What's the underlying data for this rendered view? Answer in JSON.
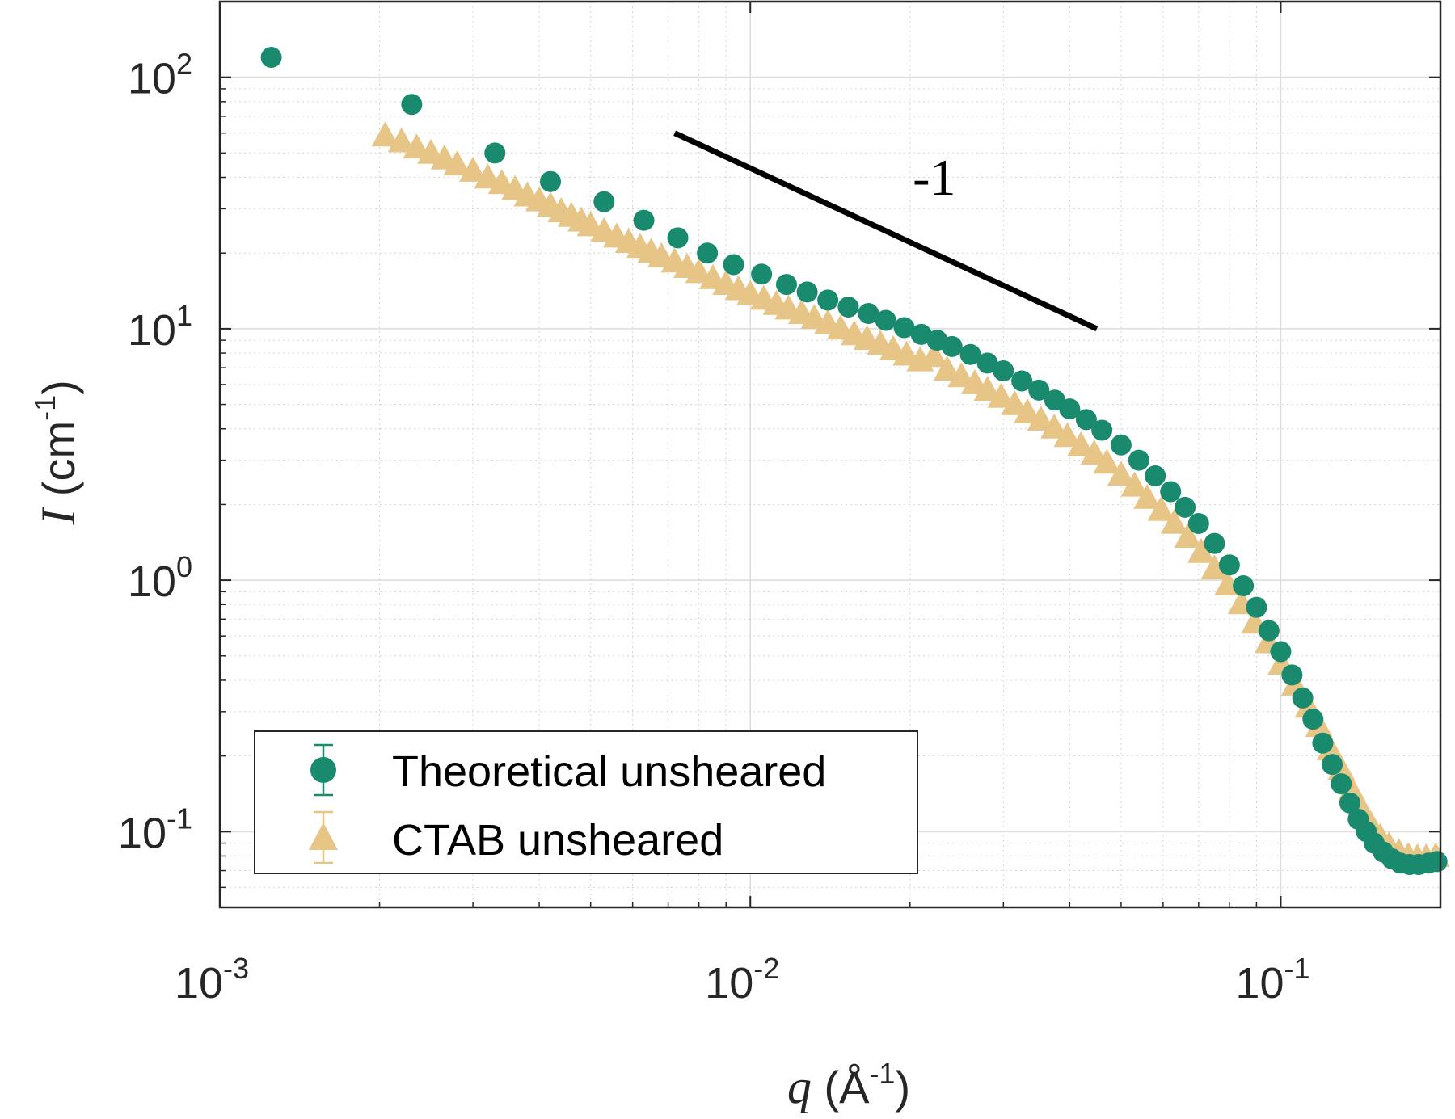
{
  "chart_data": {
    "type": "scatter",
    "xscale": "log",
    "yscale": "log",
    "xlim": [
      0.001,
      0.2
    ],
    "ylim": [
      0.05,
      200
    ],
    "grid": true,
    "minor_grid": true,
    "legend_position": "bottom-left",
    "xlabel": {
      "var": "q",
      "unit_open": " (Å",
      "unit_exp": "-1",
      "unit_close": ")"
    },
    "ylabel": {
      "var": "I",
      "unit_open": " (cm",
      "unit_exp": "-1",
      "unit_close": ")"
    },
    "xticks": [
      {
        "value": 0.001,
        "base": "10",
        "exp": "-3"
      },
      {
        "value": 0.01,
        "base": "10",
        "exp": "-2"
      },
      {
        "value": 0.1,
        "base": "10",
        "exp": "-1"
      }
    ],
    "yticks": [
      {
        "value": 0.1,
        "base": "10",
        "exp": "-1"
      },
      {
        "value": 1,
        "base": "10",
        "exp": "0"
      },
      {
        "value": 10,
        "base": "10",
        "exp": "1"
      },
      {
        "value": 100,
        "base": "10",
        "exp": "2"
      }
    ],
    "annotations": [
      {
        "type": "slope_line",
        "x": [
          0.0072,
          0.045
        ],
        "y": [
          60,
          10
        ],
        "label": "-1"
      }
    ],
    "series": [
      {
        "name": "Theoretical unsheared",
        "marker": "circle",
        "color": "#1a8a6e",
        "points": [
          [
            0.00125,
            120
          ],
          [
            0.0023,
            78
          ],
          [
            0.0033,
            50
          ],
          [
            0.0042,
            38.5
          ],
          [
            0.0053,
            32
          ],
          [
            0.0063,
            27
          ],
          [
            0.0073,
            23
          ],
          [
            0.0083,
            20
          ],
          [
            0.0093,
            18
          ],
          [
            0.0105,
            16.5
          ],
          [
            0.0117,
            15
          ],
          [
            0.0128,
            14
          ],
          [
            0.014,
            13
          ],
          [
            0.0153,
            12.2
          ],
          [
            0.0167,
            11.5
          ],
          [
            0.018,
            10.8
          ],
          [
            0.0195,
            10.1
          ],
          [
            0.021,
            9.5
          ],
          [
            0.0225,
            9
          ],
          [
            0.024,
            8.5
          ],
          [
            0.026,
            7.9
          ],
          [
            0.028,
            7.3
          ],
          [
            0.03,
            6.8
          ],
          [
            0.0325,
            6.2
          ],
          [
            0.035,
            5.7
          ],
          [
            0.0375,
            5.2
          ],
          [
            0.04,
            4.8
          ],
          [
            0.043,
            4.35
          ],
          [
            0.046,
            3.95
          ],
          [
            0.05,
            3.45
          ],
          [
            0.054,
            3.0
          ],
          [
            0.058,
            2.6
          ],
          [
            0.062,
            2.25
          ],
          [
            0.066,
            1.95
          ],
          [
            0.07,
            1.68
          ],
          [
            0.075,
            1.4
          ],
          [
            0.08,
            1.15
          ],
          [
            0.085,
            0.95
          ],
          [
            0.09,
            0.78
          ],
          [
            0.095,
            0.63
          ],
          [
            0.1,
            0.52
          ],
          [
            0.105,
            0.42
          ],
          [
            0.11,
            0.34
          ],
          [
            0.115,
            0.28
          ],
          [
            0.12,
            0.225
          ],
          [
            0.125,
            0.185
          ],
          [
            0.13,
            0.155
          ],
          [
            0.135,
            0.13
          ],
          [
            0.14,
            0.112
          ],
          [
            0.145,
            0.1
          ],
          [
            0.15,
            0.09
          ],
          [
            0.156,
            0.083
          ],
          [
            0.162,
            0.078
          ],
          [
            0.168,
            0.075
          ],
          [
            0.175,
            0.074
          ],
          [
            0.182,
            0.074
          ],
          [
            0.19,
            0.075
          ],
          [
            0.197,
            0.076
          ]
        ]
      },
      {
        "name": "CTAB unsheared",
        "marker": "triangle",
        "color": "#e6c587",
        "points": [
          [
            0.00205,
            58
          ],
          [
            0.0022,
            55
          ],
          [
            0.00235,
            52
          ],
          [
            0.0025,
            49.5
          ],
          [
            0.00265,
            47
          ],
          [
            0.0028,
            44.5
          ],
          [
            0.003,
            42
          ],
          [
            0.0032,
            39.5
          ],
          [
            0.0034,
            37.5
          ],
          [
            0.0036,
            35.5
          ],
          [
            0.0038,
            33.5
          ],
          [
            0.004,
            32
          ],
          [
            0.0042,
            30.5
          ],
          [
            0.0044,
            29
          ],
          [
            0.0046,
            27.8
          ],
          [
            0.0048,
            26.6
          ],
          [
            0.005,
            25.5
          ],
          [
            0.0053,
            24.2
          ],
          [
            0.0056,
            23
          ],
          [
            0.0059,
            21.9
          ],
          [
            0.0062,
            20.9
          ],
          [
            0.0065,
            20
          ],
          [
            0.0068,
            19.2
          ],
          [
            0.0072,
            18.3
          ],
          [
            0.0076,
            17.4
          ],
          [
            0.008,
            16.6
          ],
          [
            0.0085,
            15.7
          ],
          [
            0.009,
            14.9
          ],
          [
            0.0095,
            14.2
          ],
          [
            0.01,
            13.6
          ],
          [
            0.0106,
            13
          ],
          [
            0.0112,
            12.4
          ],
          [
            0.0118,
            11.9
          ],
          [
            0.0125,
            11.4
          ],
          [
            0.0132,
            10.9
          ],
          [
            0.014,
            10.4
          ],
          [
            0.0148,
            9.9
          ],
          [
            0.0157,
            9.4
          ],
          [
            0.0166,
            9.0
          ],
          [
            0.0176,
            8.6
          ],
          [
            0.0186,
            8.2
          ],
          [
            0.0197,
            7.8
          ],
          [
            0.0209,
            7.4
          ],
          [
            0.0222,
            7.7
          ],
          [
            0.0235,
            6.8
          ],
          [
            0.025,
            6.4
          ],
          [
            0.0265,
            6.0
          ],
          [
            0.028,
            5.65
          ],
          [
            0.0297,
            5.3
          ],
          [
            0.0315,
            4.95
          ],
          [
            0.0333,
            4.6
          ],
          [
            0.0353,
            4.3
          ],
          [
            0.0374,
            4.0
          ],
          [
            0.0396,
            3.7
          ],
          [
            0.042,
            3.4
          ],
          [
            0.0445,
            3.15
          ],
          [
            0.047,
            2.9
          ],
          [
            0.05,
            2.6
          ],
          [
            0.053,
            2.35
          ],
          [
            0.056,
            2.1
          ],
          [
            0.0595,
            1.88
          ],
          [
            0.063,
            1.67
          ],
          [
            0.0668,
            1.47
          ],
          [
            0.0708,
            1.28
          ],
          [
            0.075,
            1.1
          ],
          [
            0.0795,
            0.95
          ],
          [
            0.0843,
            0.8
          ],
          [
            0.0893,
            0.67
          ],
          [
            0.0947,
            0.56
          ],
          [
            0.1003,
            0.46
          ],
          [
            0.1063,
            0.38
          ],
          [
            0.1127,
            0.31
          ],
          [
            0.118,
            0.26
          ],
          [
            0.124,
            0.21
          ],
          [
            0.13,
            0.175
          ],
          [
            0.136,
            0.145
          ],
          [
            0.142,
            0.122
          ],
          [
            0.148,
            0.105
          ],
          [
            0.154,
            0.094
          ],
          [
            0.16,
            0.087
          ],
          [
            0.167,
            0.082
          ],
          [
            0.174,
            0.079
          ],
          [
            0.181,
            0.078
          ],
          [
            0.188,
            0.078
          ],
          [
            0.196,
            0.079
          ]
        ]
      }
    ]
  },
  "legend": {
    "items": [
      {
        "label": "Theoretical unsheared"
      },
      {
        "label": "CTAB unsheared"
      }
    ]
  }
}
